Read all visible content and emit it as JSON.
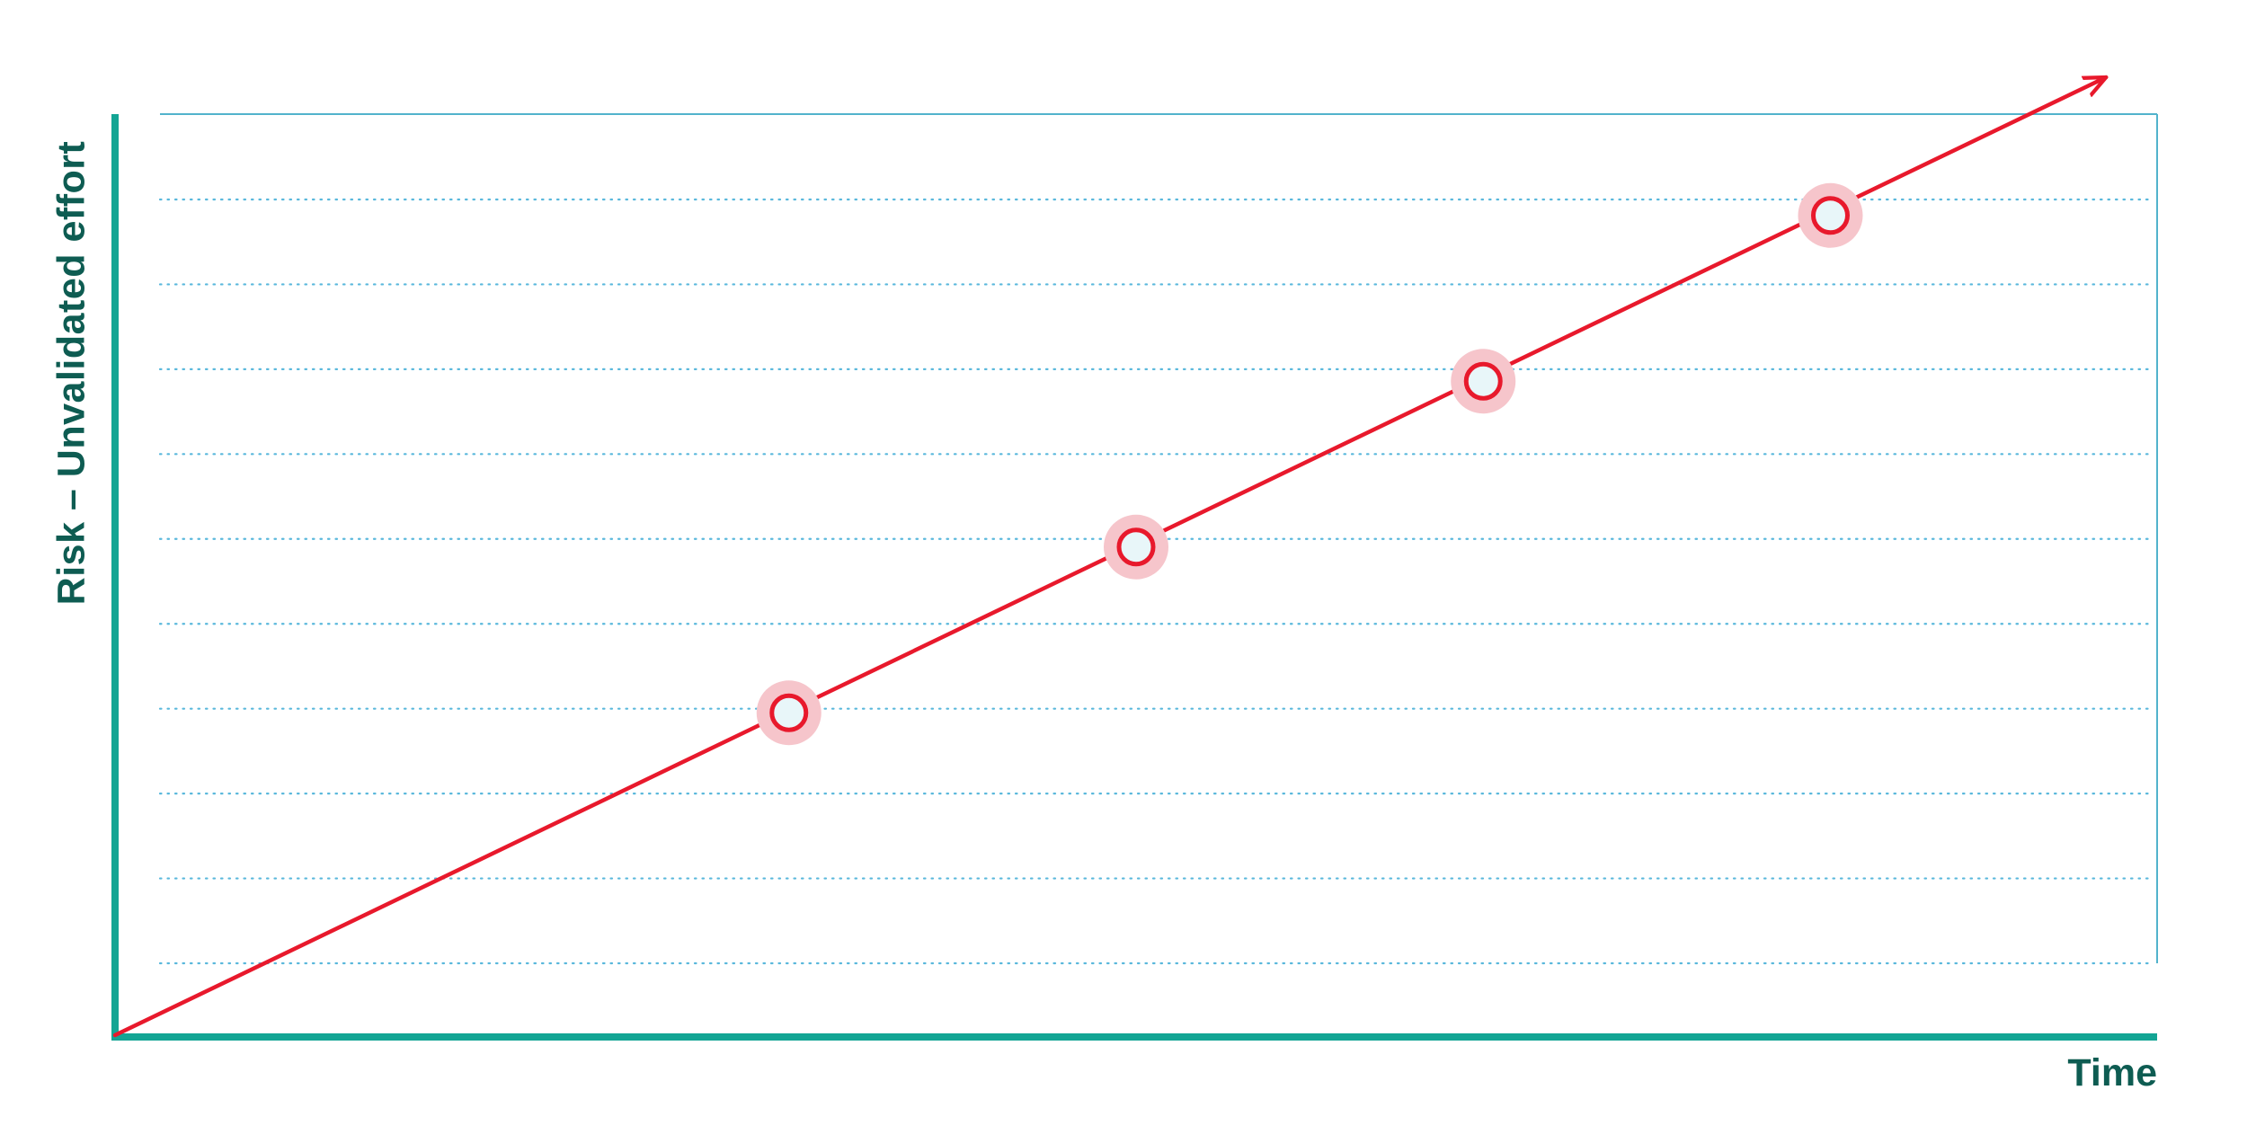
{
  "chart_data": {
    "type": "line",
    "title": "",
    "xlabel": "Time",
    "ylabel": "Risk – Unvalidated effort",
    "xlim": [
      0,
      10
    ],
    "ylim": [
      0,
      10
    ],
    "grid": true,
    "legend": "none",
    "series": [
      {
        "line": [
          [
            0,
            0
          ],
          [
            9.75,
            10.4
          ]
        ],
        "markers": [
          [
            3.3,
            3.5
          ],
          [
            5.0,
            5.3
          ],
          [
            6.7,
            7.1
          ],
          [
            8.4,
            8.9
          ]
        ]
      }
    ]
  },
  "colors": {
    "axis": "#13a594",
    "frame": "#52b3cc",
    "grid": "#5ab8dc",
    "line": "#e8192c",
    "marker_fill": "#e8f6f9",
    "marker_halo": "#f6c5cb",
    "label": "#0e5c52"
  }
}
